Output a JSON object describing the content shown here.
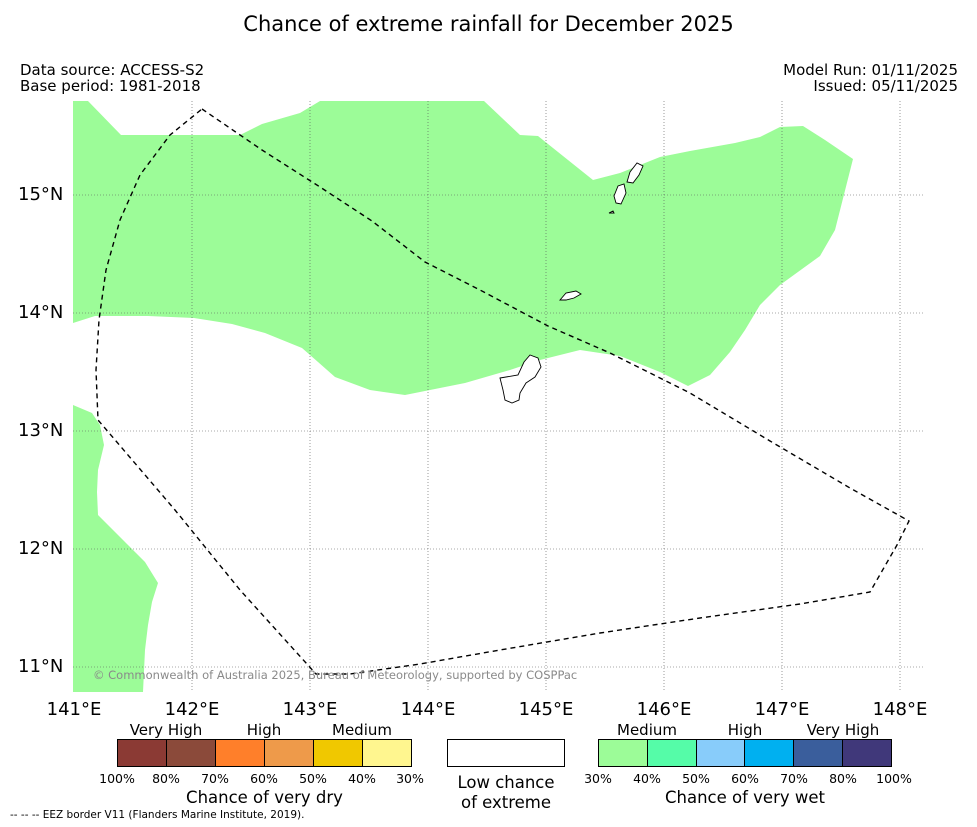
{
  "title": "Chance of extreme rainfall for December 2025",
  "data_source": "Data source: ACCESS-S2",
  "base_period": "Base period: 1981-2018",
  "model_run": "Model Run: 01/11/2025",
  "issued": "Issued: 05/11/2025",
  "lat_labels": [
    "15°N",
    "14°N",
    "13°N",
    "12°N",
    "11°N"
  ],
  "lon_labels": [
    "141°E",
    "142°E",
    "143°E",
    "144°E",
    "145°E",
    "146°E",
    "147°E",
    "148°E"
  ],
  "copyright": "© Commonwealth of Australia 2025, Bureau of Meteorology, supported by COSPPac",
  "dry_legend": {
    "categories": [
      "Very High",
      "High",
      "Medium"
    ],
    "colors": [
      "#8b3a34",
      "#8b4a3a",
      "#ff7f2a",
      "#ee9a4a",
      "#f0c800",
      "#fff68f"
    ],
    "ticks": [
      "100%",
      "80%",
      "70%",
      "60%",
      "50%",
      "40%",
      "30%"
    ],
    "title": "Chance of very dry"
  },
  "low_legend": {
    "line1": "Low chance",
    "line2": "of extreme",
    "color": "#ffffff"
  },
  "wet_legend": {
    "categories": [
      "Medium",
      "High",
      "Very High"
    ],
    "colors": [
      "#9cfc98",
      "#55fca8",
      "#88ccfa",
      "#00b0f0",
      "#3a5e9c",
      "#40387a"
    ],
    "ticks": [
      "30%",
      "40%",
      "50%",
      "60%",
      "70%",
      "80%",
      "100%"
    ],
    "title": "Chance of very wet"
  },
  "footer": "-- -- -- EEZ border V11 (Flanders Marine Institute, 2019).",
  "colors": {
    "wet_medium": "#9cfc98",
    "eez": "#000000",
    "grid": "#555555"
  }
}
